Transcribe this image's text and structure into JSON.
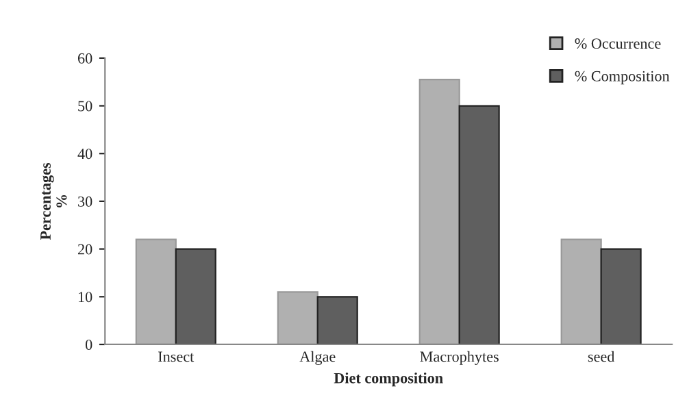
{
  "chart_data": {
    "type": "bar",
    "xlabel": "Diet composition",
    "ylabel": "Percentages\n%",
    "categories": [
      "Insect",
      "Algae",
      "Macrophytes",
      "seed"
    ],
    "series": [
      {
        "name": "% Occurrence",
        "color": "#b0b0b0",
        "values": [
          22,
          11,
          55.5,
          22
        ]
      },
      {
        "name": "% Composition",
        "color": "#5f5f5f",
        "values": [
          20,
          10,
          50,
          20
        ]
      }
    ],
    "ylim": [
      0,
      60
    ],
    "yticks": [
      0,
      10,
      20,
      30,
      40,
      50,
      60
    ],
    "grid": false,
    "legend": "top right"
  }
}
